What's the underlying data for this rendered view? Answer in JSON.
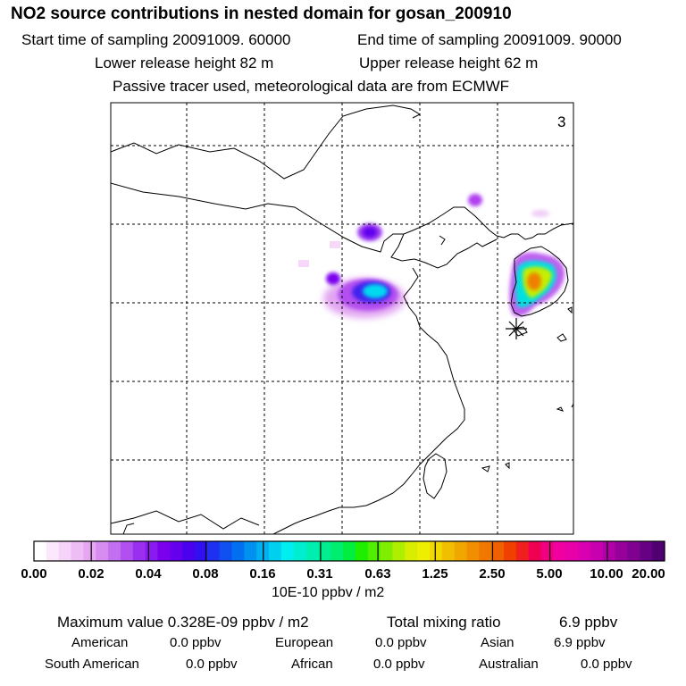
{
  "header": {
    "title": "NO2 source contributions in nested domain for gosan_200910",
    "start_time": "Start time of sampling 20091009. 60000",
    "end_time": "End time of sampling 20091009. 90000",
    "lower_height": "Lower release height   82 m",
    "upper_height": "Upper release height   62 m",
    "tracer_note": "Passive tracer used, meteorological data are from ECMWF"
  },
  "map": {
    "panel_number": "3",
    "receptor_marker": "asterisk-icon"
  },
  "colorbar": {
    "tick_labels": [
      "0.00",
      "0.02",
      "0.04",
      "0.08",
      "0.16",
      "0.31",
      "0.63",
      "1.25",
      "2.50",
      "5.00",
      "10.00",
      "20.00"
    ],
    "colors": [
      "#ffffff",
      "#fbe8fb",
      "#f6d3f8",
      "#efbdf5",
      "#e6a6f2",
      "#d78cf0",
      "#c46ff0",
      "#b14ff0",
      "#9b2ff0",
      "#8a1af0",
      "#7b00ee",
      "#6400ee",
      "#4b00ee",
      "#3010ee",
      "#2030f0",
      "#1050f0",
      "#0070f0",
      "#0090f0",
      "#00b0f0",
      "#00d0f0",
      "#00eef0",
      "#00eed0",
      "#00eeb0",
      "#00ee90",
      "#00ee70",
      "#00ee40",
      "#20ee00",
      "#50ee00",
      "#80ee00",
      "#b0ee00",
      "#d8ee00",
      "#eeee00",
      "#f0d800",
      "#f0c000",
      "#f0a800",
      "#f09000",
      "#f07800",
      "#f06000",
      "#f04000",
      "#f02020",
      "#f00050",
      "#f00080",
      "#f000a0",
      "#e800a8",
      "#d800b0",
      "#c800b0",
      "#b000a8",
      "#98009c",
      "#800090",
      "#680084",
      "#500070"
    ],
    "units": "10E-10 ppbv / m2"
  },
  "stats": {
    "max_value": "Maximum value  0.328E-09 ppbv / m2",
    "total_label": "Total mixing ratio",
    "total_value": "6.9 ppbv",
    "regions": [
      {
        "name": "American",
        "value": "0.0 ppbv"
      },
      {
        "name": "European",
        "value": "0.0 ppbv"
      },
      {
        "name": "Asian",
        "value": "6.9 ppbv"
      },
      {
        "name": "South American",
        "value": "0.0 ppbv"
      },
      {
        "name": "African",
        "value": "0.0 ppbv"
      },
      {
        "name": "Australian",
        "value": "0.0 ppbv"
      }
    ]
  }
}
